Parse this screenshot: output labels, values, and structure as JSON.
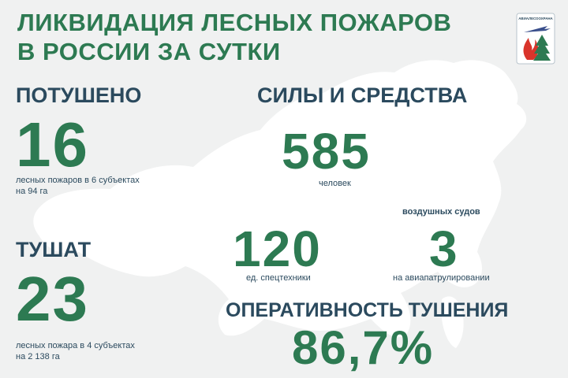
{
  "header": {
    "title_line1": "ЛИКВИДАЦИЯ ЛЕСНЫХ ПОЖАРОВ",
    "title_line2": "В РОССИИ ЗА СУТКИ",
    "logo_text": "АВИАЛЕСООХРАНА"
  },
  "extinguished": {
    "heading": "ПОТУШЕНО",
    "value": "16",
    "caption_line1": "лесных пожаров в 6 субъектах",
    "caption_line2": "на 94 га"
  },
  "active": {
    "heading": "ТУШАТ",
    "value": "23",
    "caption_line1": "лесных пожара в 4 субъектах",
    "caption_line2": "на 2 138 га"
  },
  "forces": {
    "heading": "СИЛЫ И СРЕДСТВА",
    "people_value": "585",
    "people_label": "человек",
    "aircraft_heading": "воздушных судов",
    "equipment_value": "120",
    "equipment_label": "ед. спецтехники",
    "aircraft_value": "3",
    "aircraft_label": "на авиапатрулировании"
  },
  "efficiency": {
    "heading": "ОПЕРАТИВНОСТЬ ТУШЕНИЯ",
    "value": "86,7%"
  },
  "colors": {
    "accent_green": "#2d7a52",
    "text_navy": "#2b4a5e",
    "background": "#f0f1f1",
    "map_fill": "#ffffff"
  }
}
